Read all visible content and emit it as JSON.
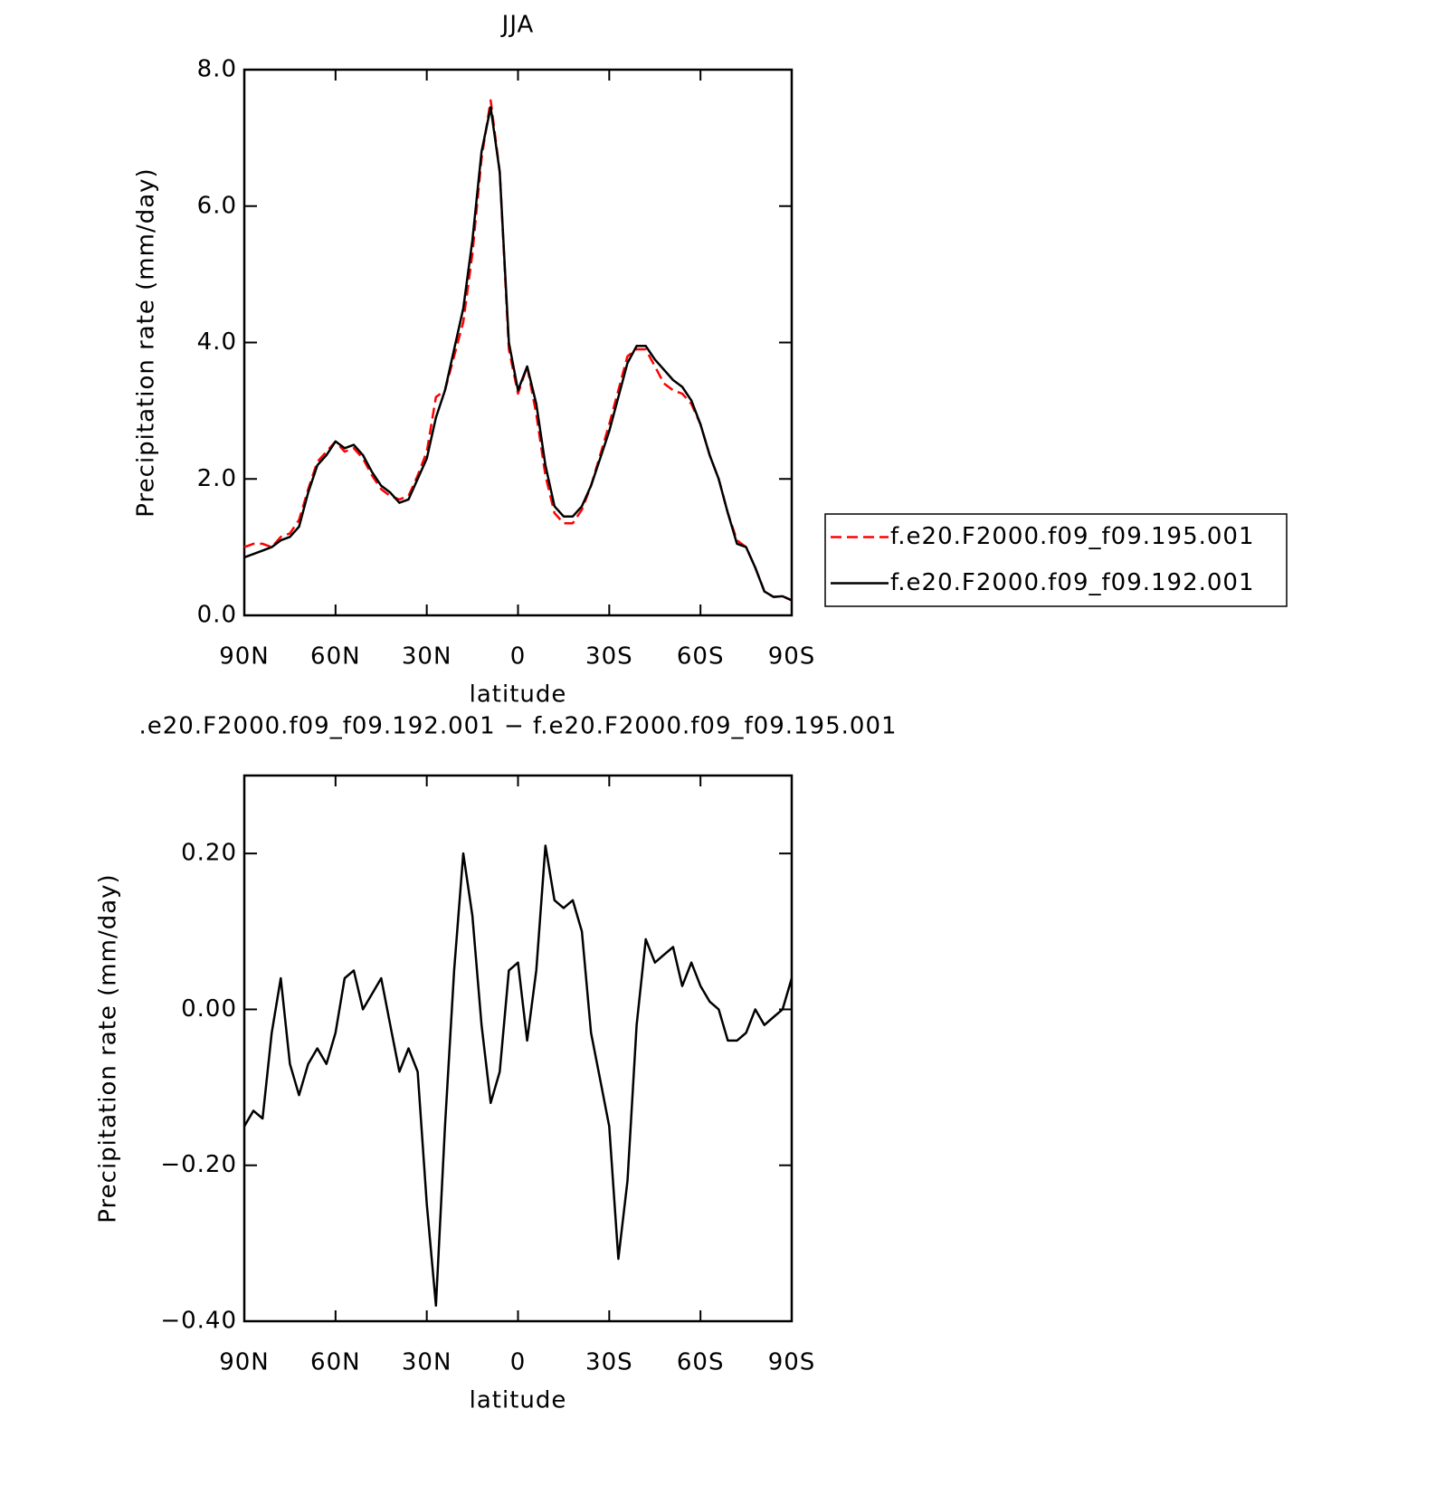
{
  "chart_data": [
    {
      "type": "line",
      "title": "JJA",
      "xlabel": "latitude",
      "ylabel": "Precipitation rate (mm/day)",
      "x": [
        90,
        87,
        84,
        81,
        78,
        75,
        72,
        69,
        66,
        63,
        60,
        57,
        54,
        51,
        48,
        45,
        42,
        39,
        36,
        33,
        30,
        27,
        24,
        21,
        18,
        15,
        12,
        9,
        6,
        3,
        0,
        -3,
        -6,
        -9,
        -12,
        -15,
        -18,
        -21,
        -24,
        -27,
        -30,
        -33,
        -36,
        -39,
        -42,
        -45,
        -48,
        -51,
        -54,
        -57,
        -60,
        -63,
        -66,
        -69,
        -72,
        -75,
        -78,
        -81,
        -84,
        -87,
        -90
      ],
      "xlim": [
        90,
        -90
      ],
      "xticks": [
        {
          "value": 90,
          "label": "90N"
        },
        {
          "value": 60,
          "label": "60N"
        },
        {
          "value": 30,
          "label": "30N"
        },
        0,
        {
          "value": -30,
          "label": "30S"
        },
        {
          "value": -60,
          "label": "60S"
        },
        {
          "value": -90,
          "label": "90S"
        }
      ],
      "ylim": [
        0,
        8
      ],
      "yticks": [
        {
          "value": 0,
          "label": "0.0"
        },
        {
          "value": 2,
          "label": "2.0"
        },
        {
          "value": 4,
          "label": "4.0"
        },
        {
          "value": 6,
          "label": "6.0"
        },
        {
          "value": 8,
          "label": "8.0"
        }
      ],
      "series": [
        {
          "name": "f.e20.F2000.f09_f09.195.001",
          "color": "#ff0000",
          "dash": true,
          "values": [
            1.0,
            1.05,
            1.05,
            1.0,
            1.15,
            1.2,
            1.4,
            1.85,
            2.25,
            2.4,
            2.55,
            2.4,
            2.45,
            2.3,
            2.05,
            1.85,
            1.75,
            1.7,
            1.75,
            2.05,
            2.4,
            3.2,
            3.3,
            3.8,
            4.3,
            5.3,
            6.7,
            7.55,
            6.5,
            3.9,
            3.25,
            3.65,
            2.95,
            2.05,
            1.5,
            1.35,
            1.35,
            1.55,
            1.9,
            2.35,
            2.8,
            3.3,
            3.8,
            3.9,
            3.9,
            3.65,
            3.4,
            3.3,
            3.25,
            3.1,
            2.8,
            2.35,
            2.0,
            1.5,
            1.1,
            1.0,
            0.7,
            0.35,
            0.27,
            0.28,
            0.22
          ]
        },
        {
          "name": "f.e20.F2000.f09_f09.192.001",
          "color": "#000000",
          "dash": false,
          "values": [
            0.85,
            0.9,
            0.95,
            1.0,
            1.1,
            1.15,
            1.3,
            1.8,
            2.2,
            2.35,
            2.55,
            2.45,
            2.5,
            2.35,
            2.1,
            1.9,
            1.8,
            1.65,
            1.7,
            2.0,
            2.3,
            2.9,
            3.3,
            3.9,
            4.5,
            5.5,
            6.8,
            7.45,
            6.5,
            4.0,
            3.3,
            3.65,
            3.1,
            2.2,
            1.6,
            1.45,
            1.45,
            1.6,
            1.9,
            2.3,
            2.7,
            3.2,
            3.7,
            3.95,
            3.95,
            3.75,
            3.6,
            3.45,
            3.35,
            3.15,
            2.8,
            2.35,
            2.0,
            1.5,
            1.05,
            1.0,
            0.7,
            0.35,
            0.27,
            0.28,
            0.22
          ]
        }
      ]
    },
    {
      "type": "line",
      "title": ".e20.F2000.f09_f09.192.001 − f.e20.F2000.f09_f09.195.001",
      "xlabel": "latitude",
      "ylabel": "Precipitation rate (mm/day)",
      "x": [
        90,
        87,
        84,
        81,
        78,
        75,
        72,
        69,
        66,
        63,
        60,
        57,
        54,
        51,
        48,
        45,
        42,
        39,
        36,
        33,
        30,
        27,
        24,
        21,
        18,
        15,
        12,
        9,
        6,
        3,
        0,
        -3,
        -6,
        -9,
        -12,
        -15,
        -18,
        -21,
        -24,
        -27,
        -30,
        -33,
        -36,
        -39,
        -42,
        -45,
        -48,
        -51,
        -54,
        -57,
        -60,
        -63,
        -66,
        -69,
        -72,
        -75,
        -78,
        -81,
        -84,
        -87,
        -90
      ],
      "xlim": [
        90,
        -90
      ],
      "xticks": [
        {
          "value": 90,
          "label": "90N"
        },
        {
          "value": 60,
          "label": "60N"
        },
        {
          "value": 30,
          "label": "30N"
        },
        0,
        {
          "value": -30,
          "label": "30S"
        },
        {
          "value": -60,
          "label": "60S"
        },
        {
          "value": -90,
          "label": "90S"
        }
      ],
      "ylim": [
        -0.4,
        0.3
      ],
      "yticks": [
        {
          "value": -0.4,
          "label": "−0.40"
        },
        {
          "value": -0.2,
          "label": "−0.20"
        },
        {
          "value": 0,
          "label": "0.00"
        },
        {
          "value": 0.2,
          "label": "0.20"
        }
      ],
      "series": [
        {
          "color": "#000000",
          "dash": false,
          "values": [
            -0.15,
            -0.13,
            -0.14,
            -0.03,
            0.04,
            -0.07,
            -0.11,
            -0.07,
            -0.05,
            -0.07,
            -0.03,
            0.04,
            0.05,
            0.0,
            0.02,
            0.04,
            -0.02,
            -0.08,
            -0.05,
            -0.08,
            -0.25,
            -0.38,
            -0.15,
            0.05,
            0.2,
            0.12,
            -0.02,
            -0.12,
            -0.08,
            0.05,
            0.06,
            -0.04,
            0.05,
            0.21,
            0.14,
            0.13,
            0.14,
            0.1,
            -0.03,
            -0.09,
            -0.15,
            -0.32,
            -0.22,
            -0.02,
            0.09,
            0.06,
            0.07,
            0.08,
            0.03,
            0.06,
            0.03,
            0.01,
            0.0,
            -0.04,
            -0.04,
            -0.03,
            0.0,
            -0.02,
            -0.01,
            0.0,
            0.04
          ]
        }
      ]
    }
  ]
}
